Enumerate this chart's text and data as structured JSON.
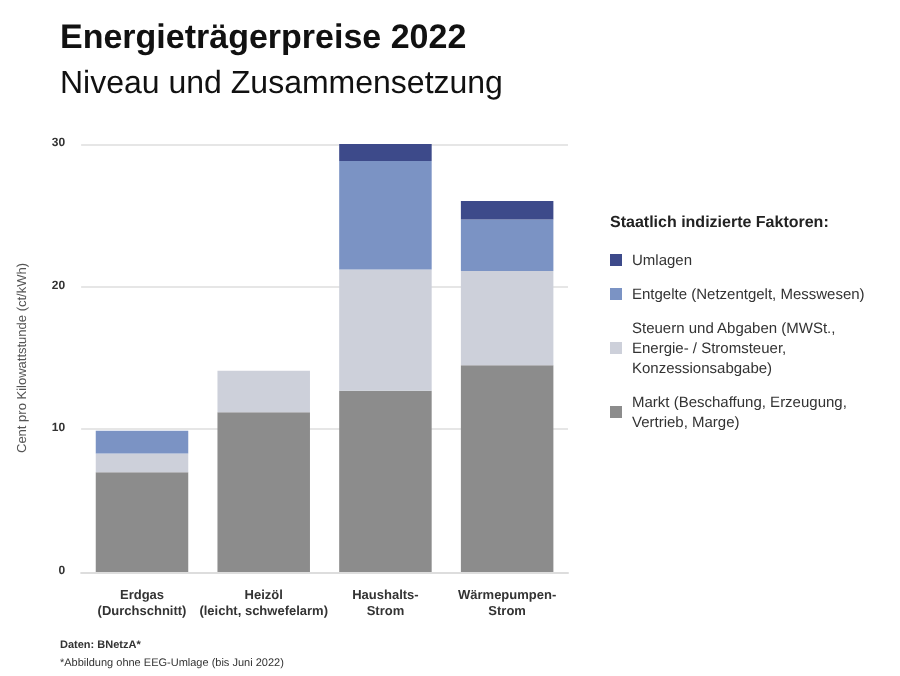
{
  "chart_data": {
    "type": "bar",
    "title": "Energieträgerpreise 2022",
    "subtitle": "Niveau und Zusammensetzung",
    "ylabel": "Cent pro Kilowattstunde (ct/kWh)",
    "legend_title": "Staatlich indizierte Faktoren:",
    "categories": [
      "Erdgas\n(Durchschnitt)",
      "Heizöl\n(leicht, schwefelarm)",
      "Haushalts-\nStrom",
      "Wärmepumpen-\nStrom"
    ],
    "stacked": true,
    "series": [
      {
        "name": "Markt (Beschaffung, Erzeugung, Vertrieb, Marge)",
        "color": "#8c8c8c",
        "values": [
          7.0,
          11.2,
          12.7,
          14.5
        ]
      },
      {
        "name": "Steuern und Abgaben (MWSt., Energie- / Stromsteuer, Konzessionsabgabe)",
        "color": "#cdd0da",
        "values": [
          1.3,
          2.9,
          8.5,
          6.6
        ]
      },
      {
        "name": "Entgelte (Netzentgelt, Messwesen)",
        "color": "#7b93c4",
        "values": [
          1.6,
          null,
          7.6,
          3.6
        ]
      },
      {
        "name": "Umlagen",
        "color": "#3d4a8a",
        "values": [
          null,
          null,
          1.2,
          1.3
        ]
      }
    ],
    "ylim": [
      0,
      30
    ],
    "yticks": [
      0,
      10,
      20,
      30
    ],
    "grid": "y",
    "legend": "right",
    "annotations": [
      "Daten: BNetzA*",
      "*Abbildung ohne EEG-Umlage (bis Juni 2022)"
    ]
  }
}
